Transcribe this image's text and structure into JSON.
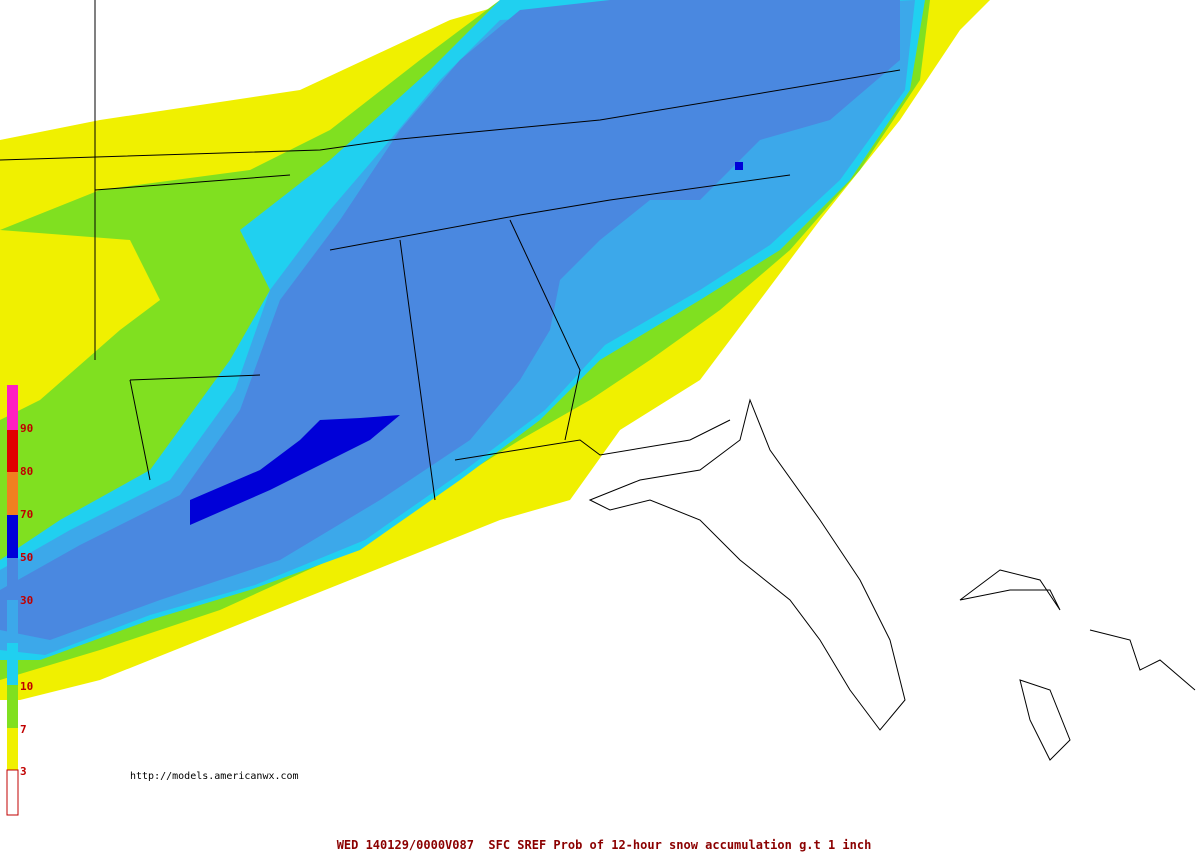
{
  "source_url": "http://models.americanwx.com",
  "footer": "WED 140129/0000V087  SFC SREF Prob of 12-hour snow accumulation g.t 1 inch",
  "legend": {
    "labels": [
      "90",
      "80",
      "70",
      "50",
      "30",
      "10",
      "7",
      "3"
    ]
  }
}
